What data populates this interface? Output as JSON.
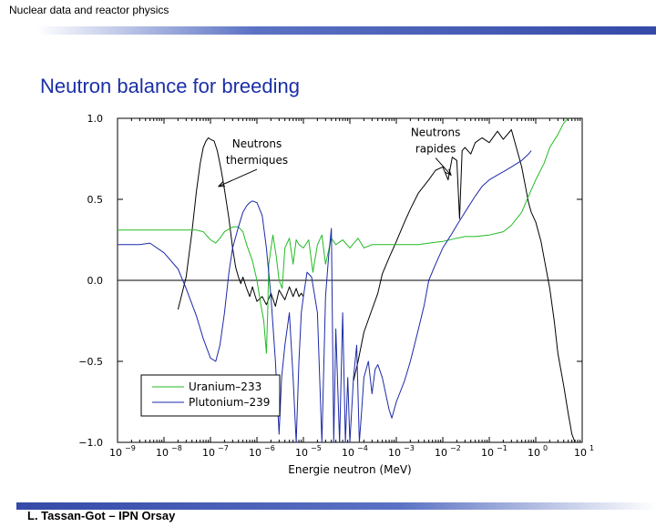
{
  "header": {
    "title": "Nuclear data and reactor physics"
  },
  "slide": {
    "title": "Neutron balance for breeding"
  },
  "footer": {
    "text": "L. Tassan-Got – IPN Orsay"
  },
  "colors": {
    "accent_bar": "#3549a8",
    "title": "#1b2fa7",
    "uranium": "#22bb22",
    "plutonium": "#1c2aa8",
    "total": "#000000"
  },
  "chart_data": {
    "type": "line",
    "xscale": "log",
    "xlim": [
      1e-09,
      10
    ],
    "ylim": [
      -1.0,
      1.0
    ],
    "xlabel": "Energie neutron (MeV)",
    "ylabel": "",
    "yticks": [
      {
        "value": -1.0,
        "label": "−1.0"
      },
      {
        "value": -0.5,
        "label": "−0.5"
      },
      {
        "value": 0.0,
        "label": "0.0"
      },
      {
        "value": 0.5,
        "label": "0.5"
      },
      {
        "value": 1.0,
        "label": "1.0"
      }
    ],
    "xticks": [
      {
        "value": 1e-09,
        "base": "10",
        "exp": "−9"
      },
      {
        "value": 1e-08,
        "base": "10",
        "exp": "−8"
      },
      {
        "value": 1e-07,
        "base": "10",
        "exp": "−7"
      },
      {
        "value": 1e-06,
        "base": "10",
        "exp": "−6"
      },
      {
        "value": 1e-05,
        "base": "10",
        "exp": "−5"
      },
      {
        "value": 0.0001,
        "base": "10",
        "exp": "−4"
      },
      {
        "value": 0.001,
        "base": "10",
        "exp": "−3"
      },
      {
        "value": 0.01,
        "base": "10",
        "exp": "−2"
      },
      {
        "value": 0.1,
        "base": "10",
        "exp": "−1"
      },
      {
        "value": 1,
        "base": "10",
        "exp": "0"
      },
      {
        "value": 10,
        "base": "10",
        "exp": "1"
      }
    ],
    "annotations": [
      {
        "lines": [
          "Neutrons",
          "thermiques"
        ],
        "x": 1e-06,
        "y": 0.82,
        "arrow_to": [
          1.5e-07,
          0.58
        ]
      },
      {
        "lines": [
          "Neutrons",
          "rapides"
        ],
        "x": 0.007,
        "y": 0.89,
        "arrow_to": [
          0.015,
          0.65
        ]
      }
    ],
    "legend": {
      "placement": "bottom-left"
    },
    "series": [
      {
        "name": "",
        "color": "#000000",
        "points": [
          [
            2e-08,
            -0.18
          ],
          [
            3e-08,
            0.02
          ],
          [
            4e-08,
            0.3
          ],
          [
            5e-08,
            0.55
          ],
          [
            6e-08,
            0.72
          ],
          [
            7e-08,
            0.82
          ],
          [
            8e-08,
            0.86
          ],
          [
            9e-08,
            0.88
          ],
          [
            1e-07,
            0.87
          ],
          [
            1.2e-07,
            0.86
          ],
          [
            1.4e-07,
            0.8
          ],
          [
            1.7e-07,
            0.68
          ],
          [
            2e-07,
            0.56
          ],
          [
            2.5e-07,
            0.38
          ],
          [
            3e-07,
            0.2
          ],
          [
            3.5e-07,
            0.08
          ],
          [
            4e-07,
            0.02
          ],
          [
            4.5e-07,
            -0.02
          ],
          [
            5e-07,
            0.02
          ],
          [
            6e-07,
            -0.05
          ],
          [
            7e-07,
            -0.1
          ],
          [
            8e-07,
            -0.04
          ],
          [
            9e-07,
            -0.09
          ],
          [
            1e-06,
            -0.13
          ],
          [
            1.3e-06,
            -0.1
          ],
          [
            1.6e-06,
            -0.15
          ],
          [
            2e-06,
            -0.08
          ],
          [
            2.5e-06,
            -0.16
          ],
          [
            3e-06,
            -0.06
          ],
          [
            4e-06,
            -0.12
          ],
          [
            5e-06,
            -0.04
          ],
          [
            6e-06,
            -0.1
          ],
          [
            7e-06,
            -0.05
          ],
          [
            8e-06,
            -0.1
          ],
          [
            9e-06,
            -0.08
          ],
          [
            1e-05,
            -0.1
          ]
        ]
      },
      {
        "name": "",
        "color": "#000000",
        "points": [
          [
            0.00012,
            -0.62
          ],
          [
            0.00015,
            -0.5
          ],
          [
            0.0002,
            -0.32
          ],
          [
            0.0003,
            -0.18
          ],
          [
            0.0004,
            -0.08
          ],
          [
            0.0005,
            0.04
          ],
          [
            0.0007,
            0.14
          ],
          [
            0.001,
            0.24
          ],
          [
            0.0015,
            0.36
          ],
          [
            0.002,
            0.44
          ],
          [
            0.003,
            0.54
          ],
          [
            0.005,
            0.62
          ],
          [
            0.007,
            0.68
          ],
          [
            0.01,
            0.7
          ],
          [
            0.013,
            0.62
          ],
          [
            0.016,
            0.76
          ],
          [
            0.02,
            0.74
          ],
          [
            0.023,
            0.38
          ],
          [
            0.026,
            0.8
          ],
          [
            0.03,
            0.82
          ],
          [
            0.04,
            0.78
          ],
          [
            0.05,
            0.85
          ],
          [
            0.07,
            0.88
          ],
          [
            0.1,
            0.85
          ],
          [
            0.15,
            0.92
          ],
          [
            0.2,
            0.87
          ],
          [
            0.3,
            0.93
          ],
          [
            0.4,
            0.8
          ],
          [
            0.5,
            0.7
          ],
          [
            0.6,
            0.58
          ],
          [
            0.7,
            0.48
          ],
          [
            0.8,
            0.42
          ],
          [
            1,
            0.36
          ],
          [
            1.3,
            0.24
          ],
          [
            1.6,
            0.1
          ],
          [
            2,
            -0.05
          ],
          [
            2.5,
            -0.25
          ],
          [
            3,
            -0.45
          ],
          [
            4,
            -0.65
          ],
          [
            5,
            -0.82
          ],
          [
            6,
            -0.95
          ],
          [
            7,
            -1.0
          ]
        ]
      },
      {
        "name": "Uranium–233",
        "color": "#22bb22",
        "points": [
          [
            1e-09,
            0.31
          ],
          [
            5e-09,
            0.31
          ],
          [
            1e-08,
            0.31
          ],
          [
            3e-08,
            0.31
          ],
          [
            5e-08,
            0.31
          ],
          [
            7e-08,
            0.3
          ],
          [
            1e-07,
            0.25
          ],
          [
            1.3e-07,
            0.23
          ],
          [
            1.6e-07,
            0.26
          ],
          [
            2e-07,
            0.3
          ],
          [
            3e-07,
            0.33
          ],
          [
            4e-07,
            0.33
          ],
          [
            5e-07,
            0.3
          ],
          [
            6e-07,
            0.22
          ],
          [
            8e-07,
            0.12
          ],
          [
            1e-06,
            0.0
          ],
          [
            1.2e-06,
            -0.14
          ],
          [
            1.4e-06,
            -0.25
          ],
          [
            1.6e-06,
            -0.45
          ],
          [
            1.7e-06,
            -0.2
          ],
          [
            1.8e-06,
            0.1
          ],
          [
            2.2e-06,
            0.28
          ],
          [
            2.6e-06,
            0.15
          ],
          [
            3e-06,
            0.0
          ],
          [
            3.5e-06,
            -0.05
          ],
          [
            4e-06,
            0.2
          ],
          [
            5e-06,
            0.26
          ],
          [
            6e-06,
            0.1
          ],
          [
            7e-06,
            0.25
          ],
          [
            8e-06,
            0.22
          ],
          [
            1e-05,
            0.2
          ],
          [
            1.3e-05,
            0.25
          ],
          [
            1.6e-05,
            0.05
          ],
          [
            2e-05,
            0.22
          ],
          [
            2.5e-05,
            0.28
          ],
          [
            3e-05,
            0.1
          ],
          [
            4e-05,
            0.26
          ],
          [
            5e-05,
            0.22
          ],
          [
            7e-05,
            0.25
          ],
          [
            0.0001,
            0.2
          ],
          [
            0.00015,
            0.26
          ],
          [
            0.0002,
            0.2
          ],
          [
            0.0003,
            0.22
          ],
          [
            0.0005,
            0.22
          ],
          [
            0.0007,
            0.22
          ],
          [
            0.001,
            0.22
          ],
          [
            0.0015,
            0.22
          ],
          [
            0.002,
            0.22
          ],
          [
            0.003,
            0.22
          ],
          [
            0.005,
            0.23
          ],
          [
            0.01,
            0.24
          ],
          [
            0.02,
            0.26
          ],
          [
            0.03,
            0.27
          ],
          [
            0.05,
            0.27
          ],
          [
            0.1,
            0.28
          ],
          [
            0.2,
            0.3
          ],
          [
            0.3,
            0.34
          ],
          [
            0.5,
            0.42
          ],
          [
            0.7,
            0.52
          ],
          [
            1,
            0.62
          ],
          [
            1.5,
            0.72
          ],
          [
            2,
            0.82
          ],
          [
            3,
            0.9
          ],
          [
            4,
            0.97
          ],
          [
            5,
            1.0
          ]
        ]
      },
      {
        "name": "Plutonium–239",
        "color": "#1c2aa8",
        "points": [
          [
            1e-09,
            0.22
          ],
          [
            3e-09,
            0.22
          ],
          [
            5e-09,
            0.23
          ],
          [
            1e-08,
            0.17
          ],
          [
            2e-08,
            0.07
          ],
          [
            3e-08,
            -0.05
          ],
          [
            5e-08,
            -0.22
          ],
          [
            7e-08,
            -0.36
          ],
          [
            1e-07,
            -0.48
          ],
          [
            1.3e-07,
            -0.5
          ],
          [
            1.6e-07,
            -0.4
          ],
          [
            2e-07,
            -0.2
          ],
          [
            2.5e-07,
            0.05
          ],
          [
            3e-07,
            0.2
          ],
          [
            4e-07,
            0.33
          ],
          [
            5e-07,
            0.42
          ],
          [
            6e-07,
            0.46
          ],
          [
            7e-07,
            0.48
          ],
          [
            8e-07,
            0.49
          ],
          [
            1e-06,
            0.48
          ],
          [
            1.3e-06,
            0.4
          ],
          [
            1.6e-06,
            0.2
          ],
          [
            2e-06,
            -0.1
          ],
          [
            2.5e-06,
            -0.5
          ],
          [
            3e-06,
            -0.95
          ],
          [
            3.4e-06,
            -0.6
          ],
          [
            4e-06,
            -0.4
          ],
          [
            5e-06,
            -0.2
          ],
          [
            6e-06,
            -0.6
          ],
          [
            7e-06,
            -1.0
          ],
          [
            8e-06,
            -0.5
          ],
          [
            9e-06,
            -0.2
          ],
          [
            1e-05,
            -0.1
          ],
          [
            1.2e-05,
            0.05
          ],
          [
            1.5e-05,
            0.02
          ],
          [
            2e-05,
            -0.2
          ],
          [
            2.5e-05,
            -1.0
          ],
          [
            3e-05,
            -0.1
          ],
          [
            3.5e-05,
            0.15
          ],
          [
            4e-05,
            0.32
          ],
          [
            4.5e-05,
            -1.0
          ],
          [
            5e-05,
            -0.3
          ],
          [
            6e-05,
            -1.0
          ],
          [
            7e-05,
            -0.2
          ],
          [
            8e-05,
            -1.0
          ],
          [
            9e-05,
            -0.6
          ],
          [
            0.0001,
            -1.0
          ],
          [
            0.00012,
            -0.6
          ],
          [
            0.00014,
            -0.4
          ],
          [
            0.00016,
            -1.0
          ],
          [
            0.00018,
            -0.8
          ],
          [
            0.0002,
            -0.6
          ],
          [
            0.00025,
            -0.5
          ],
          [
            0.0003,
            -0.7
          ],
          [
            0.00035,
            -0.55
          ],
          [
            0.0004,
            -0.52
          ],
          [
            0.0005,
            -0.6
          ],
          [
            0.0007,
            -0.8
          ],
          [
            0.0008,
            -0.85
          ],
          [
            0.001,
            -0.75
          ],
          [
            0.0015,
            -0.62
          ],
          [
            0.002,
            -0.5
          ],
          [
            0.003,
            -0.3
          ],
          [
            0.004,
            -0.15
          ],
          [
            0.005,
            0.0
          ],
          [
            0.007,
            0.1
          ],
          [
            0.01,
            0.2
          ],
          [
            0.015,
            0.28
          ],
          [
            0.02,
            0.34
          ],
          [
            0.03,
            0.42
          ],
          [
            0.05,
            0.52
          ],
          [
            0.07,
            0.58
          ],
          [
            0.1,
            0.62
          ],
          [
            0.15,
            0.65
          ],
          [
            0.2,
            0.67
          ],
          [
            0.3,
            0.7
          ],
          [
            0.5,
            0.74
          ],
          [
            0.7,
            0.78
          ],
          [
            0.8,
            0.8
          ]
        ]
      }
    ]
  }
}
